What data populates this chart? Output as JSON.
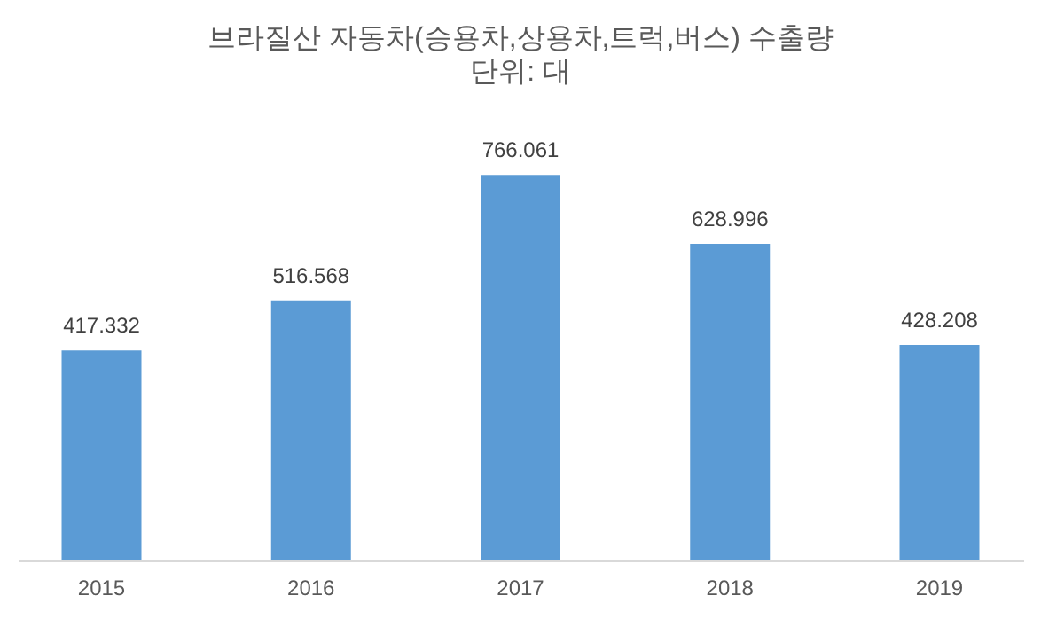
{
  "chart_data": {
    "type": "bar",
    "title": "브라질산 자동차(승용차,상용차,트럭,버스) 수출량",
    "subtitle": "단위: 대",
    "categories": [
      "2015",
      "2016",
      "2017",
      "2018",
      "2019"
    ],
    "values": [
      417.332,
      516.568,
      766.061,
      628.996,
      428.208
    ],
    "color": "#5b9bd5",
    "data_labels": true
  }
}
